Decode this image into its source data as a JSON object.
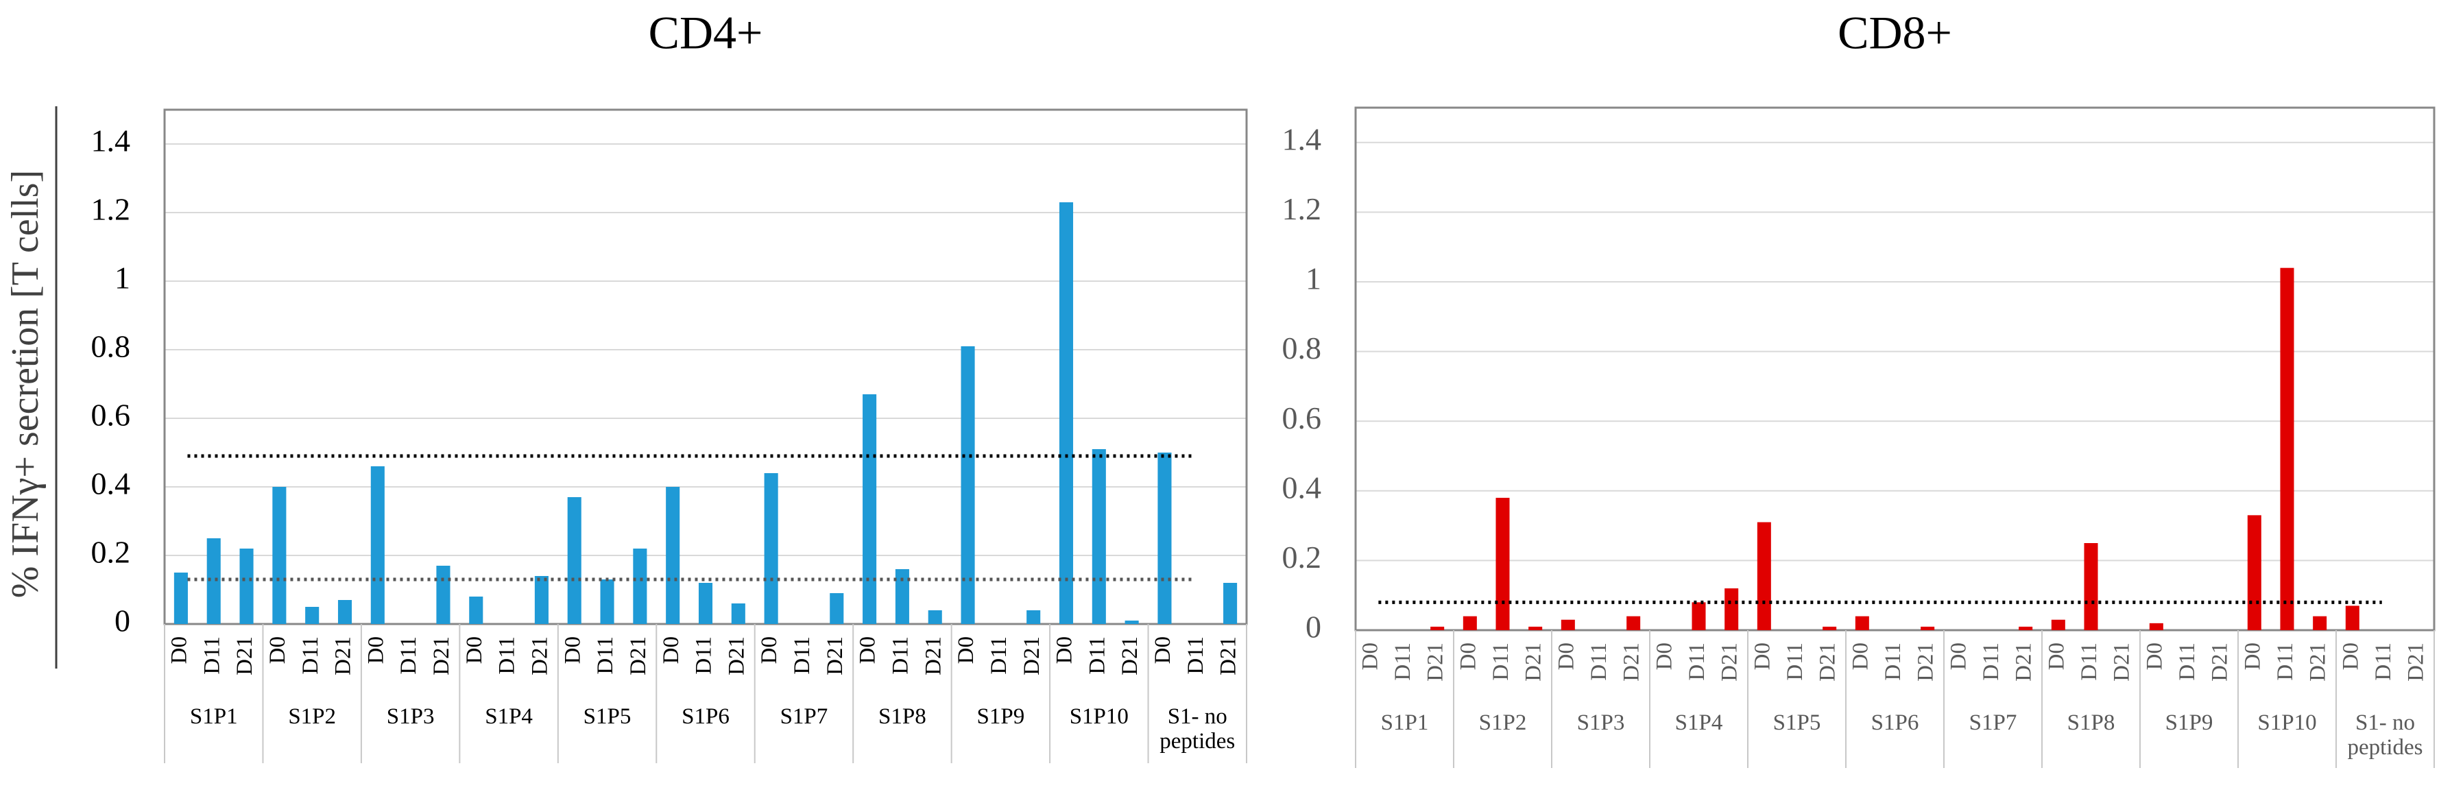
{
  "chart_data": [
    {
      "type": "bar",
      "title": "CD4+",
      "ylabel": "% IFNγ+ secretion [T cells]",
      "categories": [
        "D0",
        "D11",
        "D21",
        "D0",
        "D11",
        "D21",
        "D0",
        "D11",
        "D21",
        "D0",
        "D11",
        "D21",
        "D0",
        "D11",
        "D21",
        "D0",
        "D11",
        "D21",
        "D0",
        "D11",
        "D21",
        "D0",
        "D11",
        "D21",
        "D0",
        "D11",
        "D21",
        "D0",
        "D11",
        "D21",
        "D0",
        "D11",
        "D21"
      ],
      "groups": [
        "S1P1",
        "S1P2",
        "S1P3",
        "S1P4",
        "S1P5",
        "S1P6",
        "S1P7",
        "S1P8",
        "S1P9",
        "S1P10",
        "S1- no peptides"
      ],
      "values": [
        0.15,
        0.25,
        0.22,
        0.4,
        0.05,
        0.07,
        0.46,
        0,
        0.17,
        0.08,
        0,
        0.14,
        0.37,
        0.13,
        0.22,
        0.4,
        0.12,
        0.06,
        0.44,
        0,
        0.09,
        0.67,
        0.16,
        0.04,
        0.81,
        0,
        0.04,
        1.23,
        0.51,
        0.01,
        0.5,
        0,
        0.12
      ],
      "color": "#1f9ad6",
      "thresholds": [
        0.49,
        0.13
      ],
      "ylim": [
        0,
        1.5
      ],
      "yticks": [
        0,
        0.2,
        0.4,
        0.6,
        0.8,
        1,
        1.2,
        1.4
      ],
      "grid": true
    },
    {
      "type": "bar",
      "title": "CD8+",
      "categories": [
        "D0",
        "D11",
        "D21",
        "D0",
        "D11",
        "D21",
        "D0",
        "D11",
        "D21",
        "D0",
        "D11",
        "D21",
        "D0",
        "D11",
        "D21",
        "D0",
        "D11",
        "D21",
        "D0",
        "D11",
        "D21",
        "D0",
        "D11",
        "D21",
        "D0",
        "D11",
        "D21",
        "D0",
        "D11",
        "D21",
        "D0",
        "D11",
        "D21"
      ],
      "groups": [
        "S1P1",
        "S1P2",
        "S1P3",
        "S1P4",
        "S1P5",
        "S1P6",
        "S1P7",
        "S1P8",
        "S1P9",
        "S1P10",
        "S1- no peptides"
      ],
      "values": [
        0,
        0,
        0.01,
        0.04,
        0.38,
        0.01,
        0.03,
        0,
        0.04,
        0,
        0.08,
        0.12,
        0.31,
        0,
        0.01,
        0.04,
        0,
        0.01,
        0,
        0,
        0.01,
        0.03,
        0.25,
        0,
        0.02,
        0,
        0,
        0.33,
        1.04,
        0.04,
        0.07,
        0,
        0
      ],
      "color": "#e00000",
      "thresholds": [
        0.08
      ],
      "ylim": [
        0,
        1.5
      ],
      "yticks": [
        0,
        0.2,
        0.4,
        0.6,
        0.8,
        1,
        1.2,
        1.4
      ],
      "grid": true
    }
  ]
}
